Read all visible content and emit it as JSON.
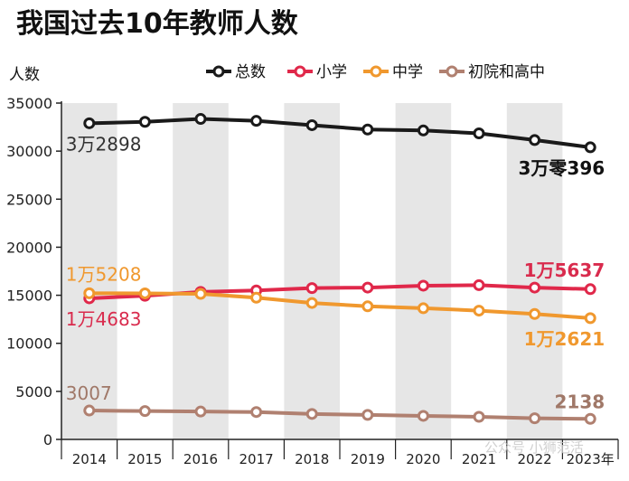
{
  "chart_data": {
    "type": "line",
    "title": "我国过去10年教师人数",
    "ylabel": "人数",
    "xlabel": "",
    "ylim": [
      0,
      35000
    ],
    "y_ticks": [
      0,
      5000,
      10000,
      15000,
      20000,
      25000,
      30000,
      35000
    ],
    "categories": [
      "2014",
      "2015",
      "2016",
      "2017",
      "2018",
      "2019",
      "2020",
      "2021",
      "2022",
      "2023年"
    ],
    "legend_position": "top-right",
    "series": [
      {
        "name": "总数",
        "color": "#1a1a1a",
        "label_color": "#333333",
        "values": [
          32898,
          33050,
          33350,
          33150,
          32700,
          32250,
          32150,
          31850,
          31150,
          30396
        ]
      },
      {
        "name": "小学",
        "color": "#e0284a",
        "label_color": "#d92b4d",
        "values": [
          14683,
          14950,
          15350,
          15500,
          15750,
          15800,
          16000,
          16050,
          15800,
          15637
        ]
      },
      {
        "name": "中学",
        "color": "#f0982e",
        "label_color": "#f0982e",
        "values": [
          15208,
          15200,
          15150,
          14750,
          14200,
          13850,
          13650,
          13400,
          13050,
          12621
        ]
      },
      {
        "name": "初院和高中",
        "color": "#b08070",
        "label_color": "#a07868",
        "values": [
          3007,
          2950,
          2900,
          2850,
          2650,
          2550,
          2450,
          2350,
          2200,
          2138
        ]
      }
    ],
    "annotations": {
      "total_first": "3万2898",
      "total_last": "3万零396",
      "middle_first": "1万5208",
      "primary_first": "1万4683",
      "primary_last": "1万5637",
      "middle_last": "1万2621",
      "junior_first": "3007",
      "junior_last": "2138"
    },
    "watermark": "公众号 小狮范活"
  }
}
